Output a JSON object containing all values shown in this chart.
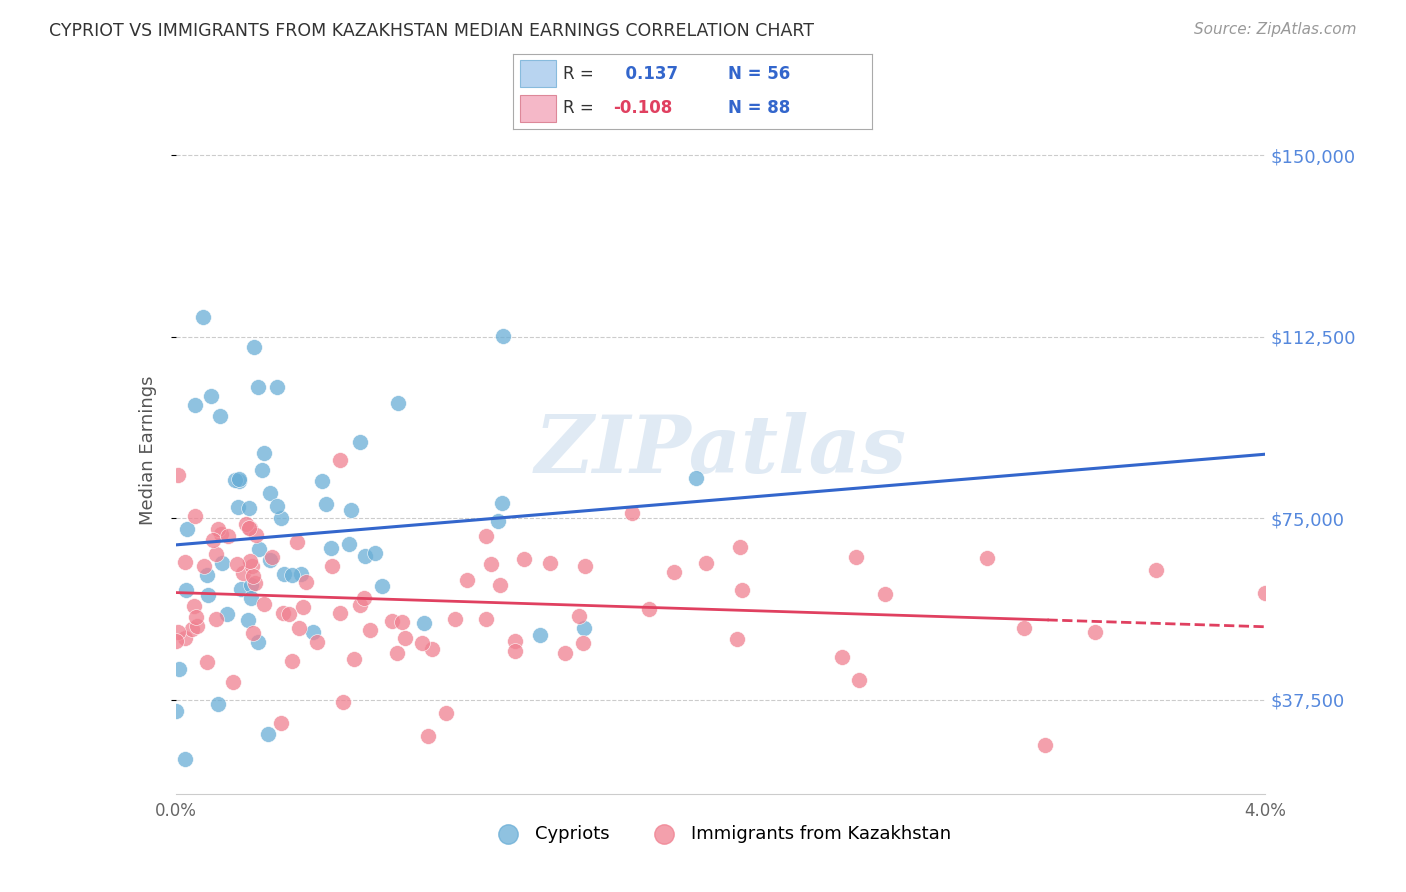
{
  "title": "CYPRIOT VS IMMIGRANTS FROM KAZAKHSTAN MEDIAN EARNINGS CORRELATION CHART",
  "source": "Source: ZipAtlas.com",
  "ylabel": "Median Earnings",
  "yticks": [
    37500,
    75000,
    112500,
    150000
  ],
  "ytick_labels": [
    "$37,500",
    "$75,000",
    "$112,500",
    "$150,000"
  ],
  "xlim": [
    0.0,
    0.04
  ],
  "ylim": [
    18000,
    160000
  ],
  "cypriot_color": "#6aaed6",
  "kazakhstan_color": "#f08090",
  "blue_line_color": "#3366cc",
  "pink_line_color": "#e04060",
  "grid_color": "#cccccc",
  "axis_color": "#5588dd",
  "watermark": "ZIPatlas",
  "legend_blue_fill": "#b8d4f0",
  "legend_pink_fill": "#f5b8c8",
  "R_blue": "0.137",
  "N_blue": "56",
  "R_pink": "-0.108",
  "N_pink": "88",
  "bottom_legend_blue": "Cypriots",
  "bottom_legend_pink": "Immigrants from Kazakhstan"
}
